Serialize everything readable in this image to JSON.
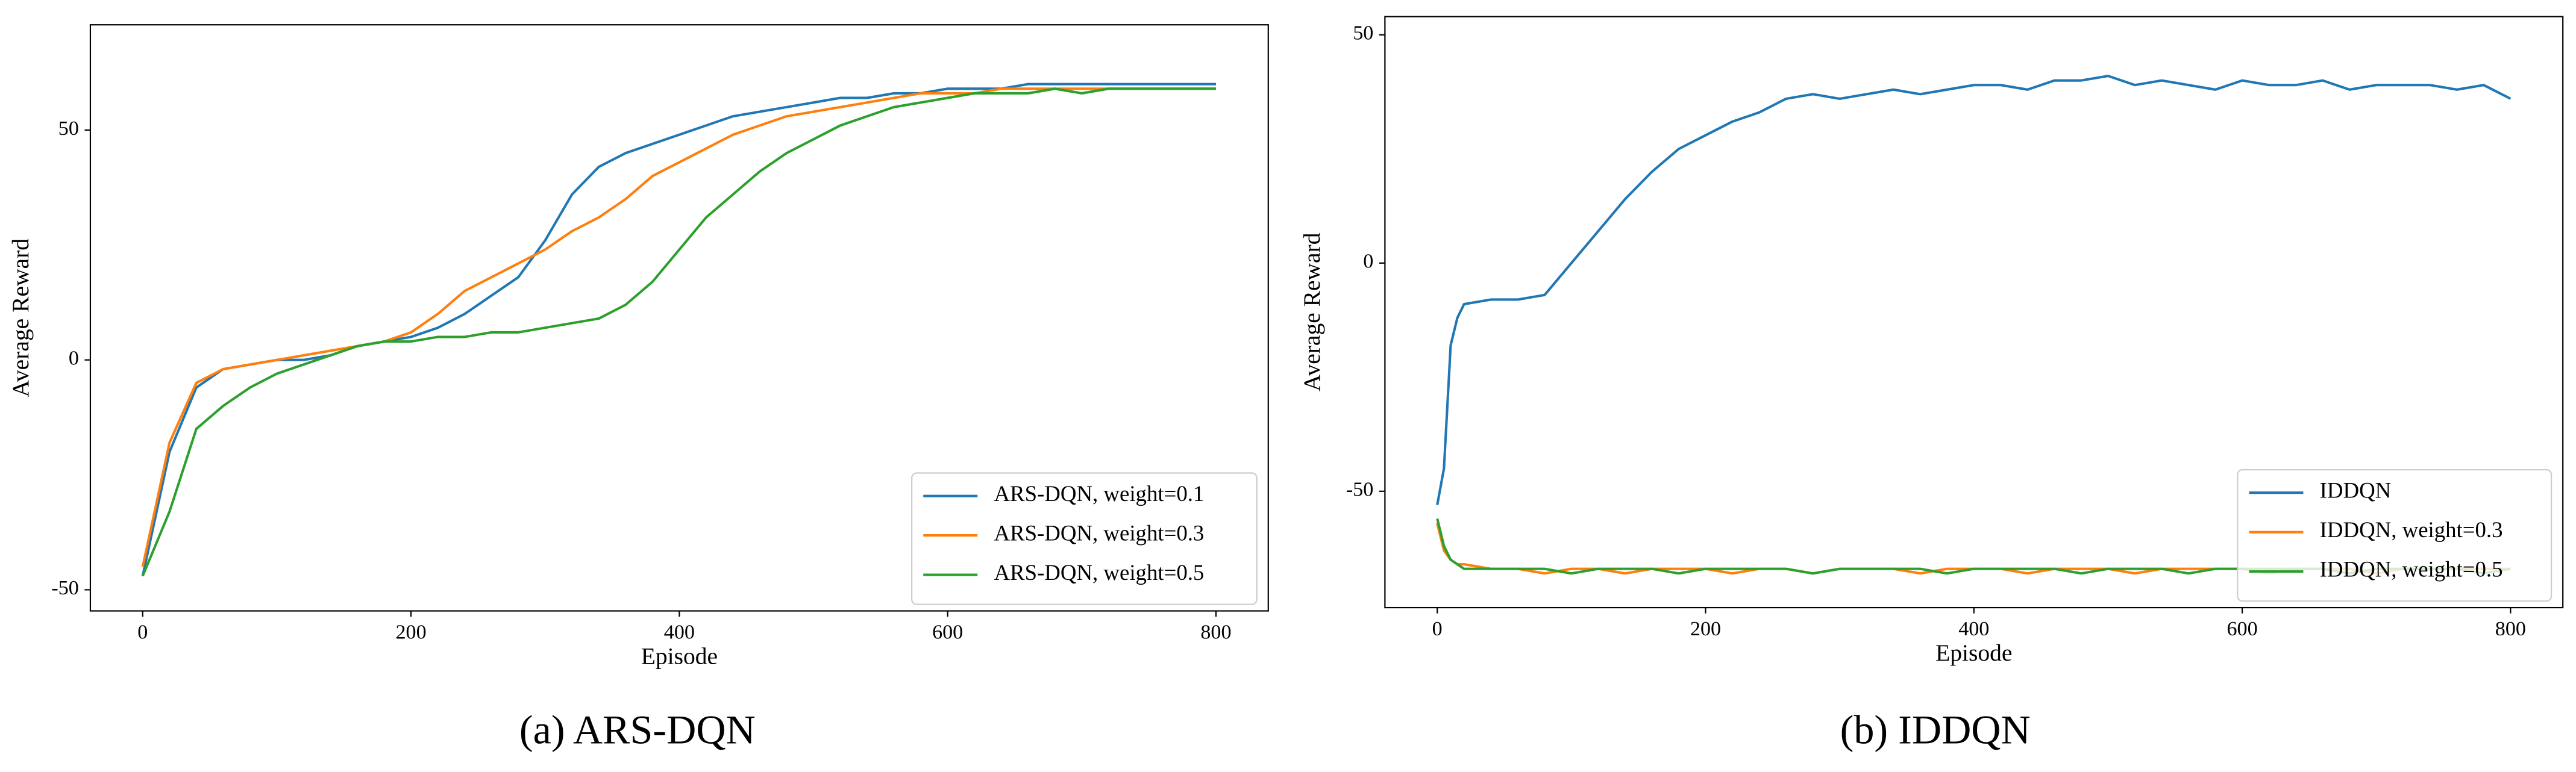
{
  "chart_data": [
    {
      "type": "line",
      "caption": "(a) ARS-DQN",
      "x_label": "Episode",
      "y_label": "Average Reward",
      "x": [
        0,
        20,
        40,
        60,
        80,
        100,
        120,
        140,
        160,
        180,
        200,
        220,
        240,
        260,
        280,
        300,
        320,
        340,
        360,
        380,
        400,
        420,
        440,
        460,
        480,
        500,
        520,
        540,
        560,
        580,
        600,
        620,
        640,
        660,
        680,
        700,
        720,
        740,
        760,
        780,
        800
      ],
      "series": [
        {
          "name": "ARS-DQN, weight=0.1",
          "color": "#1f77b4",
          "values": [
            -47,
            -20,
            -6,
            -2,
            -1,
            0,
            0,
            1,
            3,
            4,
            5,
            7,
            10,
            14,
            18,
            26,
            36,
            42,
            45,
            47,
            49,
            51,
            53,
            54,
            55,
            56,
            57,
            57,
            58,
            58,
            59,
            59,
            59,
            60,
            60,
            60,
            60,
            60,
            60,
            60,
            60
          ]
        },
        {
          "name": "ARS-DQN, weight=0.3",
          "color": "#ff7f0e",
          "values": [
            -45,
            -18,
            -5,
            -2,
            -1,
            0,
            1,
            2,
            3,
            4,
            6,
            10,
            15,
            18,
            21,
            24,
            28,
            31,
            35,
            40,
            43,
            46,
            49,
            51,
            53,
            54,
            55,
            56,
            57,
            58,
            58,
            58,
            59,
            59,
            59,
            59,
            59,
            59,
            59,
            59,
            59
          ]
        },
        {
          "name": "ARS-DQN, weight=0.5",
          "color": "#2ca02c",
          "values": [
            -47,
            -33,
            -15,
            -10,
            -6,
            -3,
            -1,
            1,
            3,
            4,
            4,
            5,
            5,
            6,
            6,
            7,
            8,
            9,
            12,
            17,
            24,
            31,
            36,
            41,
            45,
            48,
            51,
            53,
            55,
            56,
            57,
            58,
            58,
            58,
            59,
            58,
            59,
            59,
            59,
            59,
            59
          ]
        }
      ],
      "xlim": [
        -39,
        839
      ],
      "ylim": [
        -54.6,
        72.9
      ],
      "xticks": [
        0,
        200,
        400,
        600,
        800
      ],
      "yticks": [
        -50,
        0,
        50
      ],
      "legend": "lower right"
    },
    {
      "type": "line",
      "caption": "(b) IDDQN",
      "x_label": "Episode",
      "y_label": "Average Reward",
      "x": [
        0,
        5,
        10,
        15,
        20,
        40,
        60,
        80,
        100,
        120,
        140,
        160,
        180,
        200,
        220,
        240,
        260,
        280,
        300,
        320,
        340,
        360,
        380,
        400,
        420,
        440,
        460,
        480,
        500,
        520,
        540,
        560,
        580,
        600,
        620,
        640,
        660,
        680,
        700,
        720,
        740,
        760,
        780,
        800
      ],
      "series": [
        {
          "name": "IDDQN",
          "color": "#1f77b4",
          "values": [
            -53,
            -45,
            -18,
            -12,
            -9,
            -8,
            -8,
            -7,
            0,
            7,
            14,
            20,
            25,
            28,
            31,
            33,
            36,
            37,
            36,
            37,
            38,
            37,
            38,
            39,
            39,
            38,
            40,
            40,
            41,
            39,
            40,
            39,
            38,
            40,
            39,
            39,
            40,
            38,
            39,
            39,
            39,
            38,
            39,
            36
          ]
        },
        {
          "name": "IDDQN, weight=0.3",
          "color": "#ff7f0e",
          "values": [
            -57,
            -63,
            -65,
            -66,
            -66,
            -67,
            -67,
            -68,
            -67,
            -67,
            -68,
            -67,
            -67,
            -67,
            -68,
            -67,
            -67,
            -68,
            -67,
            -67,
            -67,
            -68,
            -67,
            -67,
            -67,
            -68,
            -67,
            -67,
            -67,
            -68,
            -67,
            -67,
            -67,
            -67,
            -68,
            -67,
            -67,
            -67,
            -68,
            -67,
            -67,
            -67,
            -67,
            -67
          ]
        },
        {
          "name": "IDDQN, weight=0.5",
          "color": "#2ca02c",
          "values": [
            -56,
            -62,
            -65,
            -66,
            -67,
            -67,
            -67,
            -67,
            -68,
            -67,
            -67,
            -67,
            -68,
            -67,
            -67,
            -67,
            -67,
            -68,
            -67,
            -67,
            -67,
            -67,
            -68,
            -67,
            -67,
            -67,
            -67,
            -68,
            -67,
            -67,
            -67,
            -68,
            -67,
            -67,
            -67,
            -67,
            -67,
            -68,
            -67,
            -67,
            -67,
            -67,
            -68,
            -67
          ]
        }
      ],
      "xlim": [
        -39,
        839
      ],
      "ylim": [
        -75.5,
        54
      ],
      "xticks": [
        0,
        200,
        400,
        600,
        800
      ],
      "yticks": [
        -50,
        0,
        50
      ],
      "legend": "lower right"
    }
  ]
}
